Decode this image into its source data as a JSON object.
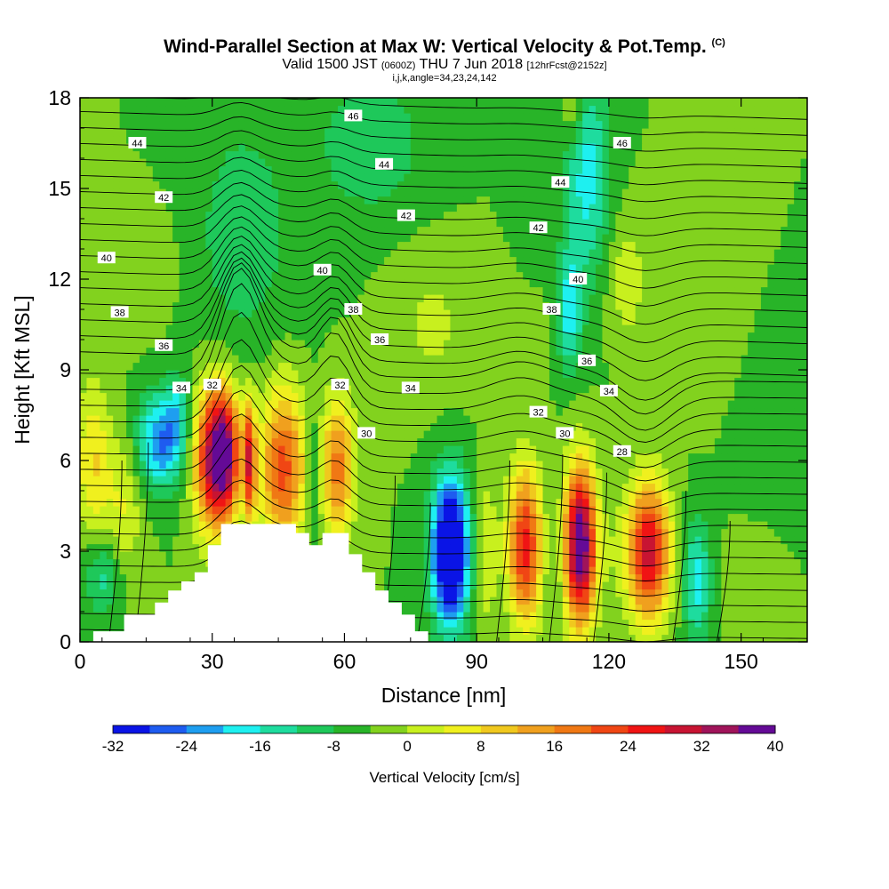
{
  "header": {
    "title": "Wind-Parallel Section at Max W: Vertical Velocity & Pot.Temp.",
    "copyright": "(C)",
    "valid_prefix": "Valid 1500 JST",
    "valid_utc": "(0600Z)",
    "valid_date": "THU 7 Jun 2018",
    "forecast": "[12hrFcst@2152z]",
    "indices": "i,j,k,angle=34,23,24,142"
  },
  "chart_data": {
    "type": "heatmap",
    "xlabel": "Distance [nm]",
    "ylabel": "Height [Kft MSL]",
    "xlim": [
      0,
      165
    ],
    "ylim": [
      0,
      18
    ],
    "x_ticks": [
      "0",
      "30",
      "60",
      "90",
      "120",
      "150"
    ],
    "y_ticks": [
      "0",
      "3",
      "6",
      "9",
      "12",
      "15",
      "18"
    ],
    "colorbar": {
      "label": "Vertical Velocity [cm/s]",
      "tick_labels": [
        "-32",
        "-24",
        "-16",
        "-8",
        "0",
        "8",
        "16",
        "24",
        "32",
        "40"
      ],
      "bounds": [
        -32,
        40
      ],
      "colors": [
        "#0a14e6",
        "#1e5cf0",
        "#1e9ef0",
        "#1ef0f0",
        "#1edc9e",
        "#1ec85a",
        "#28b428",
        "#82d21e",
        "#c8f01e",
        "#f0f01e",
        "#f0c81e",
        "#f0a01e",
        "#f07814",
        "#f04614",
        "#f01414",
        "#c81432",
        "#a0145a",
        "#640a96"
      ]
    },
    "background_value": -4,
    "terrain": [
      [
        0,
        0
      ],
      [
        3,
        0
      ],
      [
        3,
        0.35
      ],
      [
        10,
        0.35
      ],
      [
        10,
        0.9
      ],
      [
        17,
        0.9
      ],
      [
        17,
        1.3
      ],
      [
        20,
        1.3
      ],
      [
        20,
        1.7
      ],
      [
        23,
        1.7
      ],
      [
        23,
        2
      ],
      [
        26,
        2
      ],
      [
        26,
        2.3
      ],
      [
        29,
        2.3
      ],
      [
        29,
        3.2
      ],
      [
        32,
        3.2
      ],
      [
        32,
        3.9
      ],
      [
        49,
        3.9
      ],
      [
        49,
        3.6
      ],
      [
        52,
        3.6
      ],
      [
        52,
        3.2
      ],
      [
        55,
        3.2
      ],
      [
        55,
        3.6
      ],
      [
        61,
        3.6
      ],
      [
        61,
        2.9
      ],
      [
        64,
        2.9
      ],
      [
        64,
        2.3
      ],
      [
        67,
        2.3
      ],
      [
        67,
        1.7
      ],
      [
        70,
        1.7
      ],
      [
        70,
        1.3
      ],
      [
        73,
        1.3
      ],
      [
        73,
        0.9
      ],
      [
        76,
        0.9
      ],
      [
        76,
        0.35
      ],
      [
        79,
        0.35
      ],
      [
        79,
        0
      ],
      [
        165,
        0
      ]
    ],
    "velocity_features": [
      {
        "x": 32.5,
        "z": 6.2,
        "sx": 2.6,
        "sz": 1.5,
        "w": 46
      },
      {
        "x": 28.5,
        "z": 6.0,
        "sx": 2.5,
        "sz": 1.8,
        "w": 18
      },
      {
        "x": 38.5,
        "z": 6.0,
        "sx": 1.0,
        "sz": 1.4,
        "w": 28
      },
      {
        "x": 46,
        "z": 5.8,
        "sx": 3.6,
        "sz": 1.9,
        "w": 26
      },
      {
        "x": 58.5,
        "z": 5.8,
        "sx": 2.6,
        "sz": 1.6,
        "w": 22
      },
      {
        "x": 53,
        "z": 5.5,
        "sx": 1.2,
        "sz": 1.6,
        "w": -8
      },
      {
        "x": 84,
        "z": 3.0,
        "sx": 2.9,
        "sz": 1.7,
        "w": -40
      },
      {
        "x": 92,
        "z": 3.0,
        "sx": 1.8,
        "sz": 1.7,
        "w": 8
      },
      {
        "x": 101,
        "z": 3.2,
        "sx": 2.7,
        "sz": 1.8,
        "w": 30
      },
      {
        "x": 107.5,
        "z": 3.0,
        "sx": 1.6,
        "sz": 1.6,
        "w": -4
      },
      {
        "x": 113.5,
        "z": 3.2,
        "sx": 2.5,
        "sz": 1.8,
        "w": 46
      },
      {
        "x": 121,
        "z": 3.0,
        "sx": 2.0,
        "sz": 1.6,
        "w": 2
      },
      {
        "x": 129,
        "z": 3.0,
        "sx": 3.3,
        "sz": 1.6,
        "w": 34
      },
      {
        "x": 140,
        "z": 2.0,
        "sx": 2.2,
        "sz": 1.4,
        "w": -14
      },
      {
        "x": 18,
        "z": 6.6,
        "sx": 3.5,
        "sz": 1.1,
        "w": -20
      },
      {
        "x": 22,
        "z": 7.5,
        "sx": 2.0,
        "sz": 0.9,
        "w": -10
      },
      {
        "x": 3,
        "z": 6.0,
        "sx": 2.8,
        "sz": 1.8,
        "w": 12
      },
      {
        "x": 10,
        "z": 4.5,
        "sx": 3.0,
        "sz": 1.6,
        "w": 8
      },
      {
        "x": 5,
        "z": 2.2,
        "sx": 3.0,
        "sz": 0.9,
        "w": -10
      },
      {
        "x": 37,
        "z": 13.5,
        "sx": 9.0,
        "sz": 3.2,
        "w": -6
      },
      {
        "x": 66,
        "z": 16.5,
        "sx": 8.0,
        "sz": 1.6,
        "w": -8
      },
      {
        "x": 115,
        "z": 15.5,
        "sx": 3.5,
        "sz": 2.5,
        "w": -14
      },
      {
        "x": 111,
        "z": 11.0,
        "sx": 2.0,
        "sz": 1.4,
        "w": -14
      },
      {
        "x": 102,
        "z": 14.5,
        "sx": 3.0,
        "sz": 3.0,
        "w": -4
      },
      {
        "x": 124,
        "z": 12.0,
        "sx": 3.0,
        "sz": 1.4,
        "w": 7
      },
      {
        "x": 112,
        "z": 17.5,
        "sx": 1.8,
        "sz": 0.8,
        "w": 8
      },
      {
        "x": 142,
        "z": 11.5,
        "sx": 6.0,
        "sz": 2.0,
        "w": 4
      },
      {
        "x": 15,
        "z": 12.5,
        "sx": 5.0,
        "sz": 1.4,
        "w": 4
      },
      {
        "x": 80,
        "z": 10.5,
        "sx": 6.0,
        "sz": 1.6,
        "w": 5
      },
      {
        "x": 100,
        "z": 10.5,
        "sx": 4.0,
        "sz": 1.5,
        "w": 5
      },
      {
        "x": 4,
        "z": 14.5,
        "sx": 2.0,
        "sz": 2.0,
        "w": 3
      },
      {
        "x": 157,
        "z": 8.0,
        "sx": 6.0,
        "sz": 2.0,
        "w": -2
      },
      {
        "x": 152,
        "z": 2.0,
        "sx": 4.0,
        "sz": 1.0,
        "w": 2
      }
    ],
    "theta_contour_labels": [
      {
        "text": "46",
        "x": 62,
        "z": 17.4
      },
      {
        "text": "46",
        "x": 123,
        "z": 16.5
      },
      {
        "text": "44",
        "x": 13,
        "z": 16.5
      },
      {
        "text": "44",
        "x": 69,
        "z": 15.8
      },
      {
        "text": "44",
        "x": 109,
        "z": 15.2
      },
      {
        "text": "42",
        "x": 19,
        "z": 14.7
      },
      {
        "text": "42",
        "x": 74,
        "z": 14.1
      },
      {
        "text": "42",
        "x": 104,
        "z": 13.7
      },
      {
        "text": "40",
        "x": 6,
        "z": 12.7
      },
      {
        "text": "40",
        "x": 55,
        "z": 12.3
      },
      {
        "text": "40",
        "x": 113,
        "z": 12.0
      },
      {
        "text": "38",
        "x": 9,
        "z": 10.9
      },
      {
        "text": "38",
        "x": 62,
        "z": 11.0
      },
      {
        "text": "38",
        "x": 107,
        "z": 11.0
      },
      {
        "text": "36",
        "x": 19,
        "z": 9.8
      },
      {
        "text": "36",
        "x": 68,
        "z": 10.0
      },
      {
        "text": "36",
        "x": 115,
        "z": 9.3
      },
      {
        "text": "34",
        "x": 23,
        "z": 8.4
      },
      {
        "text": "34",
        "x": 75,
        "z": 8.4
      },
      {
        "text": "34",
        "x": 120,
        "z": 8.3
      },
      {
        "text": "32",
        "x": 30,
        "z": 8.5
      },
      {
        "text": "32",
        "x": 59,
        "z": 8.5
      },
      {
        "text": "32",
        "x": 104,
        "z": 7.6
      },
      {
        "text": "30",
        "x": 65,
        "z": 6.9
      },
      {
        "text": "30",
        "x": 110,
        "z": 6.9
      },
      {
        "text": "28",
        "x": 123,
        "z": 6.3
      }
    ]
  }
}
